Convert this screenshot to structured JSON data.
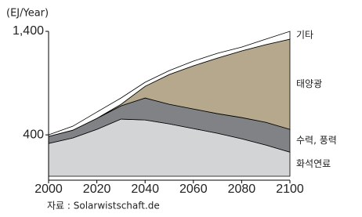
{
  "chart_data": {
    "type": "stacked-area",
    "y_label": "(EJ/Year)",
    "source": "자료 : Solarwistschaft.de",
    "x": [
      2000,
      2010,
      2020,
      2030,
      2040,
      2050,
      2060,
      2070,
      2080,
      2090,
      2100
    ],
    "xlim": [
      2000,
      2100
    ],
    "xticks": [
      2000,
      2020,
      2040,
      2060,
      2080,
      2100
    ],
    "ylim": [
      0,
      1400
    ],
    "yticks": [
      400,
      {
        "value": 1400,
        "label": "1,400"
      }
    ],
    "series": [
      {
        "name": "화석연료",
        "color": "#d3d4d6",
        "values": [
          317,
          370,
          453,
          552,
          544,
          506,
          461,
          415,
          362,
          302,
          233
        ]
      },
      {
        "name": "수력, 풍력",
        "color": "#808285",
        "values": [
          68,
          75,
          106,
          128,
          212,
          189,
          189,
          190,
          205,
          219,
          220
        ]
      },
      {
        "name": "태양광",
        "color": "#b5a88c",
        "values": [
          0,
          0,
          0,
          15,
          113,
          288,
          417,
          537,
          644,
          750,
          871
        ]
      },
      {
        "name": "기타",
        "color": "#ffffff",
        "values": [
          15,
          38,
          61,
          61,
          39,
          38,
          45,
          46,
          37,
          53,
          76
        ]
      }
    ]
  }
}
